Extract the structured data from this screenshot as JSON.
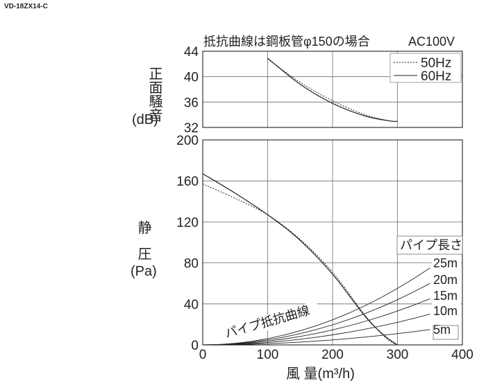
{
  "model": "VD-18ZX14-C",
  "chart_data": [
    {
      "id": "noise",
      "type": "line",
      "title": "抵抗曲線は鋼板管φ150の場合",
      "note": "AC100V",
      "ylabel": "正面騒音",
      "yunit": "(dB)",
      "xlim": [
        0,
        400
      ],
      "ylim": [
        32,
        44
      ],
      "yticks": [
        32,
        36,
        40,
        44
      ],
      "xgrid": [
        100,
        200,
        300,
        400
      ],
      "legend_position": "top-right",
      "series": [
        {
          "name": "50Hz",
          "style": "dashed",
          "x": [
            100,
            150,
            200,
            250,
            290,
            300
          ],
          "y": [
            42.8,
            39.1,
            36.2,
            34.0,
            33.0,
            33.0
          ]
        },
        {
          "name": "60Hz",
          "style": "solid",
          "x": [
            100,
            150,
            200,
            250,
            290,
            300
          ],
          "y": [
            42.9,
            38.8,
            35.8,
            33.8,
            33.0,
            33.0
          ]
        }
      ]
    },
    {
      "id": "pressure",
      "type": "line",
      "ylabel": "静圧",
      "yunit": "(Pa)",
      "xlabel": "風 量(m³/h)",
      "xlim": [
        0,
        400
      ],
      "ylim": [
        0,
        200
      ],
      "xticks": [
        0,
        100,
        200,
        300,
        400
      ],
      "yticks": [
        0,
        40,
        80,
        120,
        160,
        200
      ],
      "series": [
        {
          "name": "50Hz",
          "style": "dashed",
          "x": [
            0,
            50,
            100,
            150,
            200,
            250,
            280,
            298
          ],
          "y": [
            157,
            143,
            127,
            103,
            71,
            29,
            8,
            0
          ]
        },
        {
          "name": "60Hz",
          "style": "solid",
          "x": [
            0,
            50,
            100,
            150,
            200,
            250,
            280,
            300
          ],
          "y": [
            167,
            148,
            127,
            102,
            69,
            28,
            9,
            0
          ]
        }
      ],
      "resistance_curves": {
        "caption": "パイプ抵抗曲線",
        "legend_title": "パイプ長さ",
        "x_end": 350,
        "curves": [
          {
            "label": "25m",
            "y_end": 75
          },
          {
            "label": "20m",
            "y_end": 60
          },
          {
            "label": "15m",
            "y_end": 45
          },
          {
            "label": "10m",
            "y_end": 30
          },
          {
            "label": "5m",
            "y_end": 15
          }
        ]
      }
    }
  ]
}
